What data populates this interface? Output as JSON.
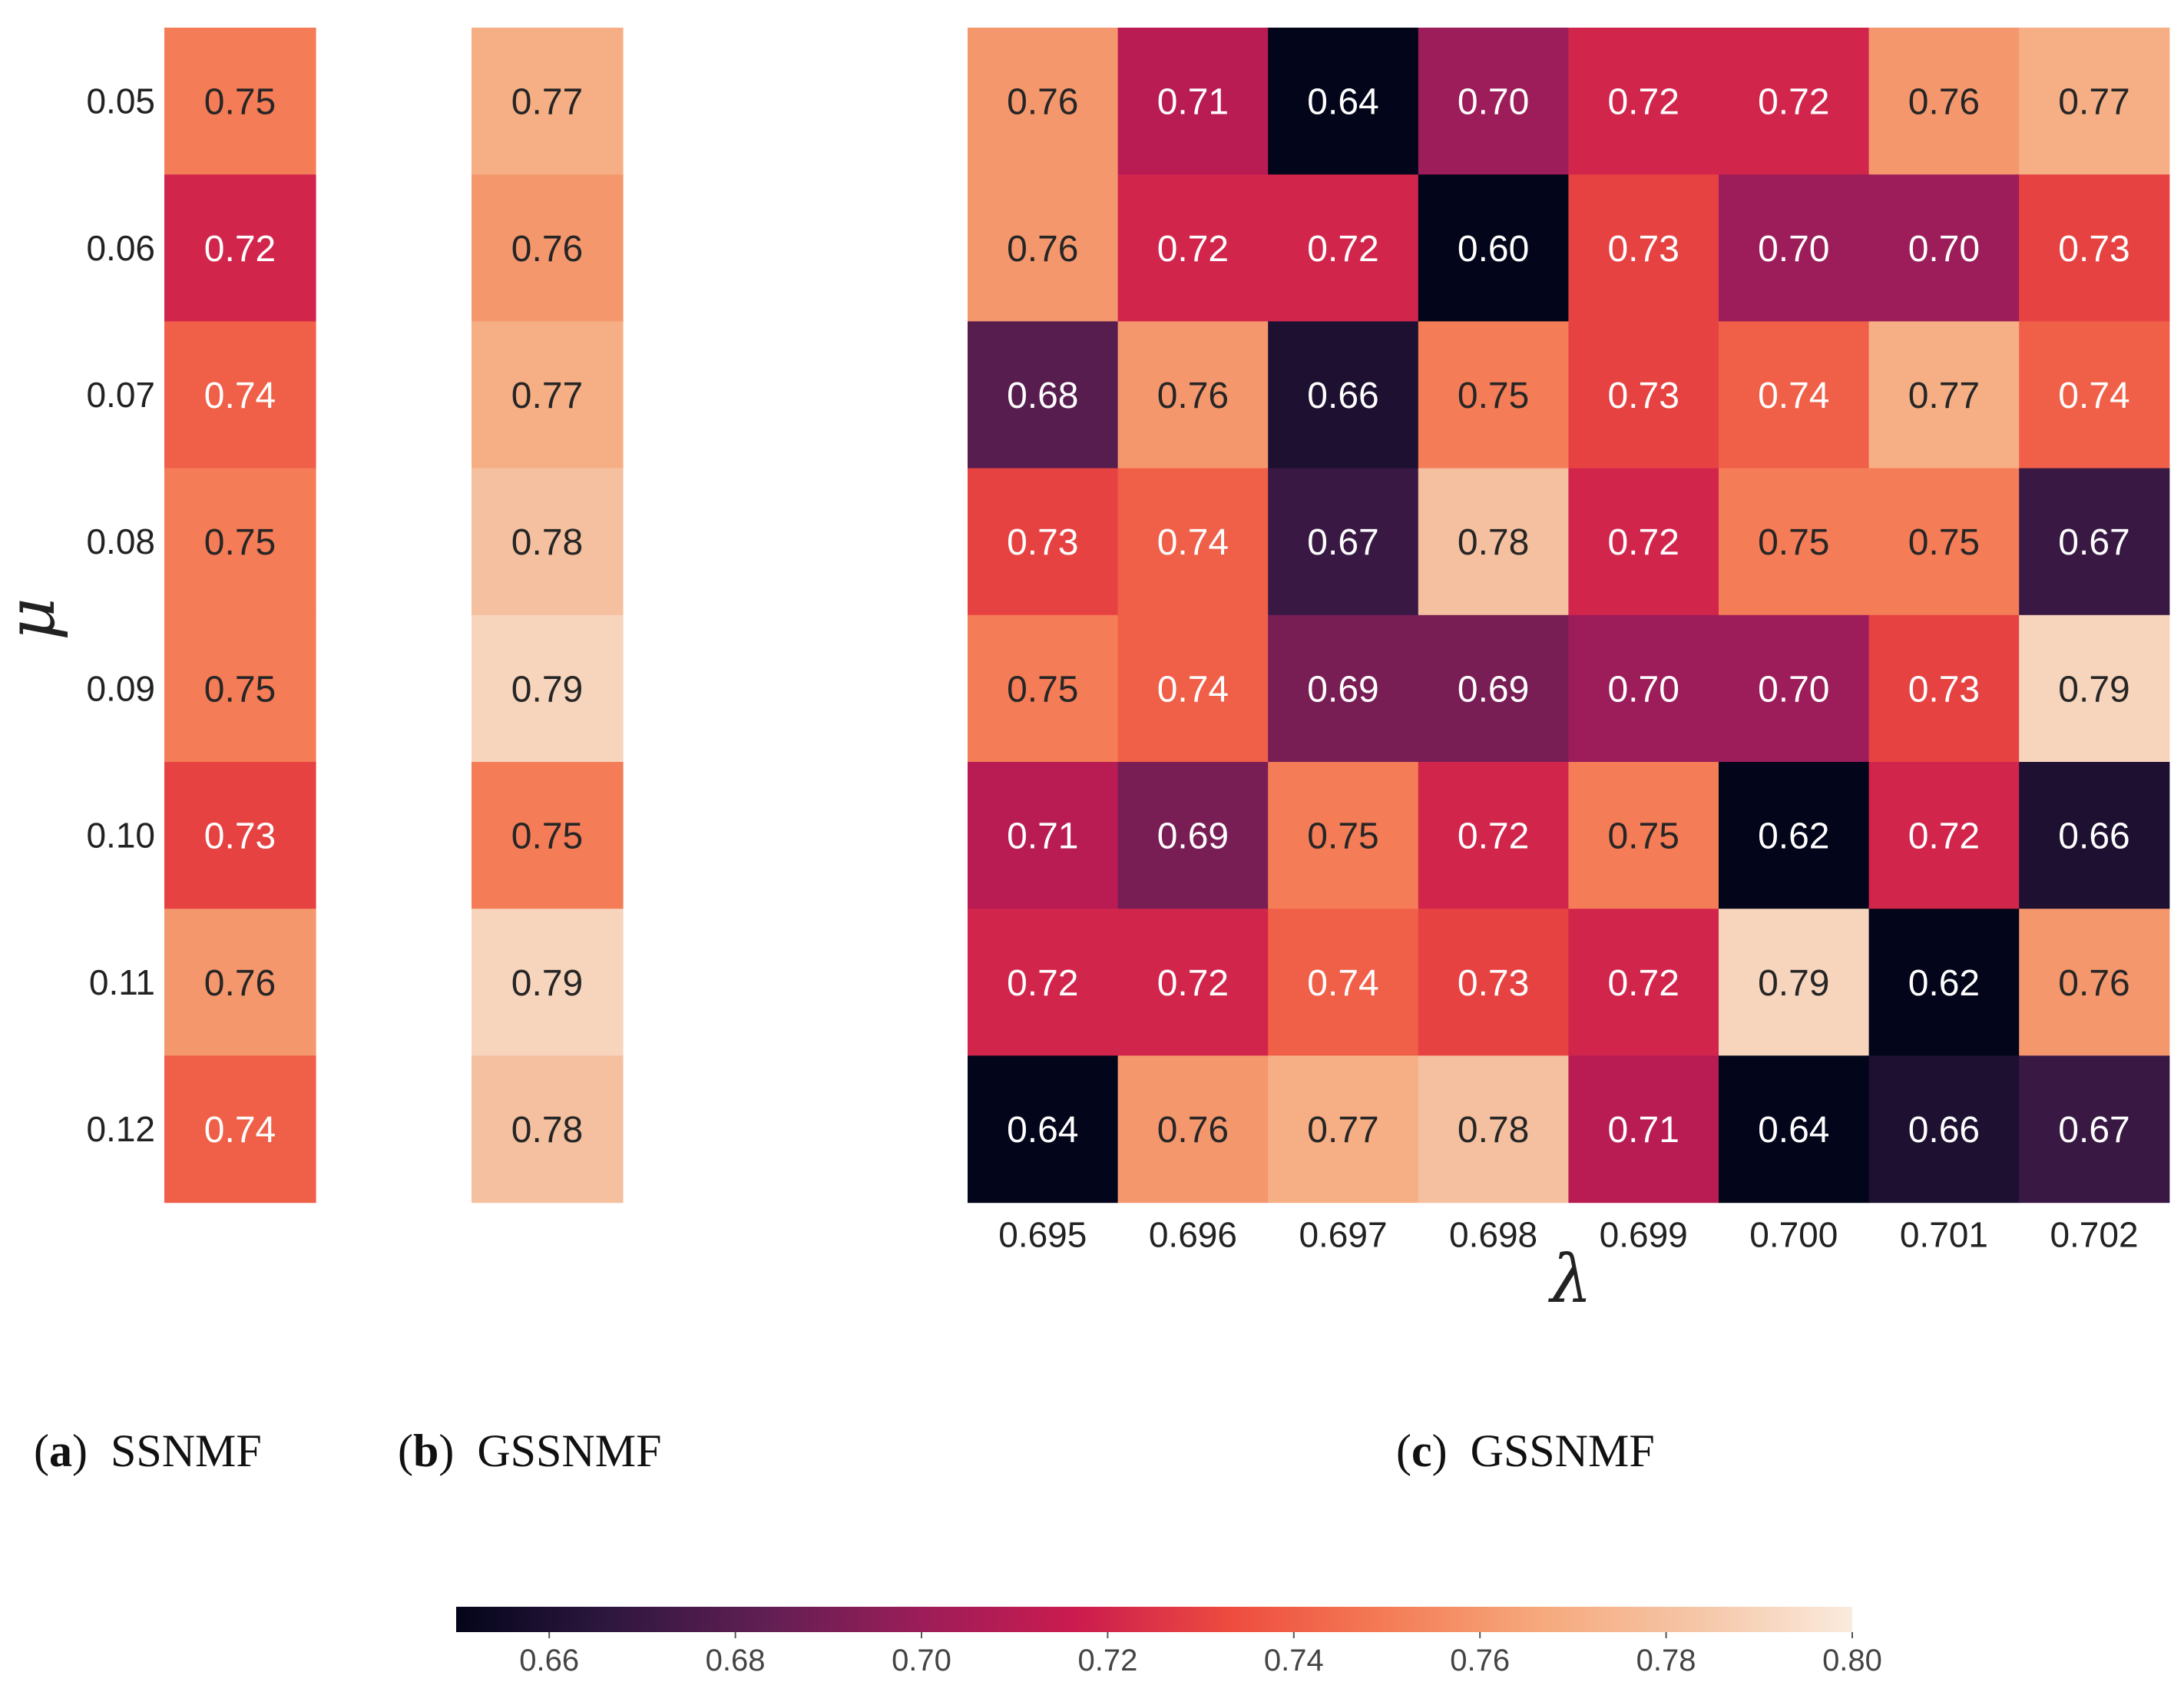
{
  "chart_data": [
    {
      "type": "heatmap",
      "id": "a",
      "caption": {
        "letter": "a",
        "label": "SSNMF"
      },
      "ylabel": "μ",
      "yticks": [
        "0.05",
        "0.06",
        "0.07",
        "0.08",
        "0.09",
        "0.10",
        "0.11",
        "0.12"
      ],
      "xticks": [],
      "values": [
        [
          0.75
        ],
        [
          0.72
        ],
        [
          0.74
        ],
        [
          0.75
        ],
        [
          0.75
        ],
        [
          0.73
        ],
        [
          0.76
        ],
        [
          0.74
        ]
      ],
      "labels": [
        [
          "0.75"
        ],
        [
          "0.72"
        ],
        [
          "0.74"
        ],
        [
          "0.75"
        ],
        [
          "0.75"
        ],
        [
          "0.73"
        ],
        [
          "0.76"
        ],
        [
          "0.74"
        ]
      ]
    },
    {
      "type": "heatmap",
      "id": "b",
      "caption": {
        "letter": "b",
        "label": "GSSNMF"
      },
      "yticks": [],
      "xticks": [],
      "values": [
        [
          0.77
        ],
        [
          0.76
        ],
        [
          0.77
        ],
        [
          0.78
        ],
        [
          0.79
        ],
        [
          0.75
        ],
        [
          0.79
        ],
        [
          0.78
        ]
      ],
      "labels": [
        [
          "0.77"
        ],
        [
          "0.76"
        ],
        [
          "0.77"
        ],
        [
          "0.78"
        ],
        [
          "0.79"
        ],
        [
          "0.75"
        ],
        [
          "0.79"
        ],
        [
          "0.78"
        ]
      ]
    },
    {
      "type": "heatmap",
      "id": "c",
      "caption": {
        "letter": "c",
        "label": "GSSNMF"
      },
      "xlabel": "λ",
      "xticks": [
        "0.695",
        "0.696",
        "0.697",
        "0.698",
        "0.699",
        "0.700",
        "0.701",
        "0.702"
      ],
      "yticks": [],
      "values": [
        [
          0.76,
          0.71,
          0.64,
          0.7,
          0.72,
          0.72,
          0.76,
          0.77
        ],
        [
          0.76,
          0.72,
          0.72,
          0.6,
          0.73,
          0.7,
          0.7,
          0.73
        ],
        [
          0.68,
          0.76,
          0.66,
          0.75,
          0.73,
          0.74,
          0.77,
          0.74
        ],
        [
          0.73,
          0.74,
          0.67,
          0.78,
          0.72,
          0.75,
          0.75,
          0.67
        ],
        [
          0.75,
          0.74,
          0.69,
          0.69,
          0.7,
          0.7,
          0.73,
          0.79
        ],
        [
          0.71,
          0.69,
          0.75,
          0.72,
          0.75,
          0.62,
          0.72,
          0.66
        ],
        [
          0.72,
          0.72,
          0.74,
          0.73,
          0.72,
          0.79,
          0.62,
          0.76
        ],
        [
          0.64,
          0.76,
          0.77,
          0.78,
          0.71,
          0.64,
          0.66,
          0.67
        ]
      ],
      "labels": [
        [
          "0.76",
          "0.71",
          "0.64",
          "0.70",
          "0.72",
          "0.72",
          "0.76",
          "0.77"
        ],
        [
          "0.76",
          "0.72",
          "0.72",
          "0.60",
          "0.73",
          "0.70",
          "0.70",
          "0.73"
        ],
        [
          "0.68",
          "0.76",
          "0.66",
          "0.75",
          "0.73",
          "0.74",
          "0.77",
          "0.74"
        ],
        [
          "0.73",
          "0.74",
          "0.67",
          "0.78",
          "0.72",
          "0.75",
          "0.75",
          "0.67"
        ],
        [
          "0.75",
          "0.74",
          "0.69",
          "0.69",
          "0.70",
          "0.70",
          "0.73",
          "0.79"
        ],
        [
          "0.71",
          "0.69",
          "0.75",
          "0.72",
          "0.75",
          "0.62",
          "0.72",
          "0.66"
        ],
        [
          "0.72",
          "0.72",
          "0.74",
          "0.73",
          "0.72",
          "0.79",
          "0.62",
          "0.76"
        ],
        [
          "0.64",
          "0.76",
          "0.77",
          "0.78",
          "0.71",
          "0.64",
          "0.66",
          "0.67"
        ]
      ]
    }
  ],
  "colorbar": {
    "colormap": "rocket",
    "range": [
      0.65,
      0.8
    ],
    "ticks": [
      0.66,
      0.68,
      0.7,
      0.72,
      0.74,
      0.76,
      0.78,
      0.8
    ],
    "tick_labels": [
      "0.66",
      "0.68",
      "0.70",
      "0.72",
      "0.74",
      "0.76",
      "0.78",
      "0.80"
    ]
  },
  "colors": {
    "rocket_stops": [
      "#03051a",
      "#2f1740",
      "#611f53",
      "#9c1d59",
      "#cb1b4f",
      "#ee4c3f",
      "#f47c56",
      "#f6a97d",
      "#f5c6a7",
      "#faebdd"
    ],
    "text_light": "#ffffff",
    "text_dark": "#262626"
  }
}
